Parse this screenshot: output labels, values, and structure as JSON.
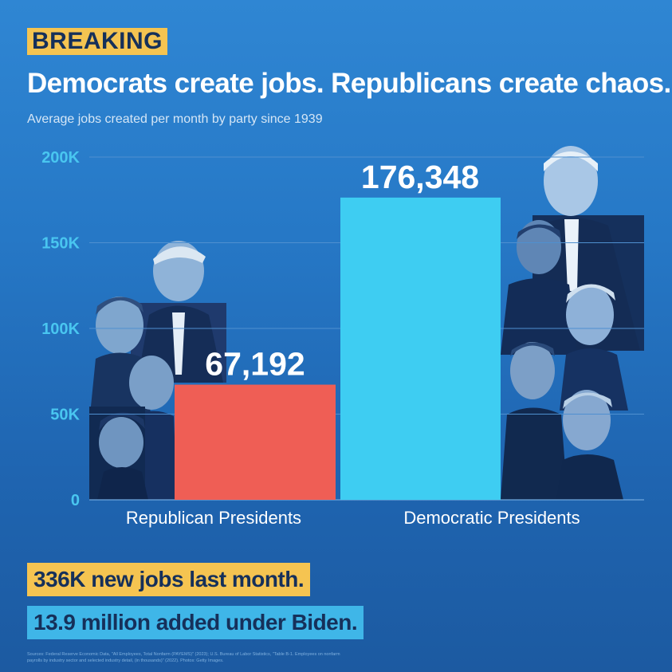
{
  "badge": "BREAKING",
  "headline": "Democrats create jobs. Republicans create chaos.",
  "subtitle": "Average jobs created per month by party since 1939",
  "chart_data": {
    "type": "bar",
    "title": "Democrats create jobs. Republicans create chaos.",
    "subtitle": "Average jobs created per month by party since 1939",
    "categories": [
      "Republican Presidents",
      "Democratic Presidents"
    ],
    "values": [
      67192,
      176348
    ],
    "value_labels": [
      "67,192",
      "176,348"
    ],
    "bar_colors": [
      "#ef5e55",
      "#3ecdf2"
    ],
    "ylim": [
      0,
      200000
    ],
    "yticks": [
      0,
      50000,
      100000,
      150000,
      200000
    ],
    "ytick_labels": [
      "0",
      "50K",
      "100K",
      "150K",
      "200K"
    ],
    "xlabel": "",
    "ylabel": "",
    "grid": true
  },
  "photos": {
    "republican": [
      "trump-portrait",
      "bush-portrait",
      "bush-senior-portrait",
      "reagan-portrait"
    ],
    "democratic": [
      "biden-portrait",
      "obama-portrait",
      "clinton-portrait",
      "johnson-portrait",
      "roosevelt-portrait"
    ]
  },
  "callouts": {
    "jobs_last_month": "336K new jobs last month.",
    "added_under_biden": "13.9 million added under Biden."
  },
  "sources": "Sources: Federal Reserve Economic Data, \"All Employees, Total Nonfarm (PAYEMS)\" (2023); U.S. Bureau of Labor Statistics, \"Table B-1. Employees on nonfarm payrolls by industry sector and selected industry detail, (in thousands)\" (2022). Photos: Getty Images."
}
